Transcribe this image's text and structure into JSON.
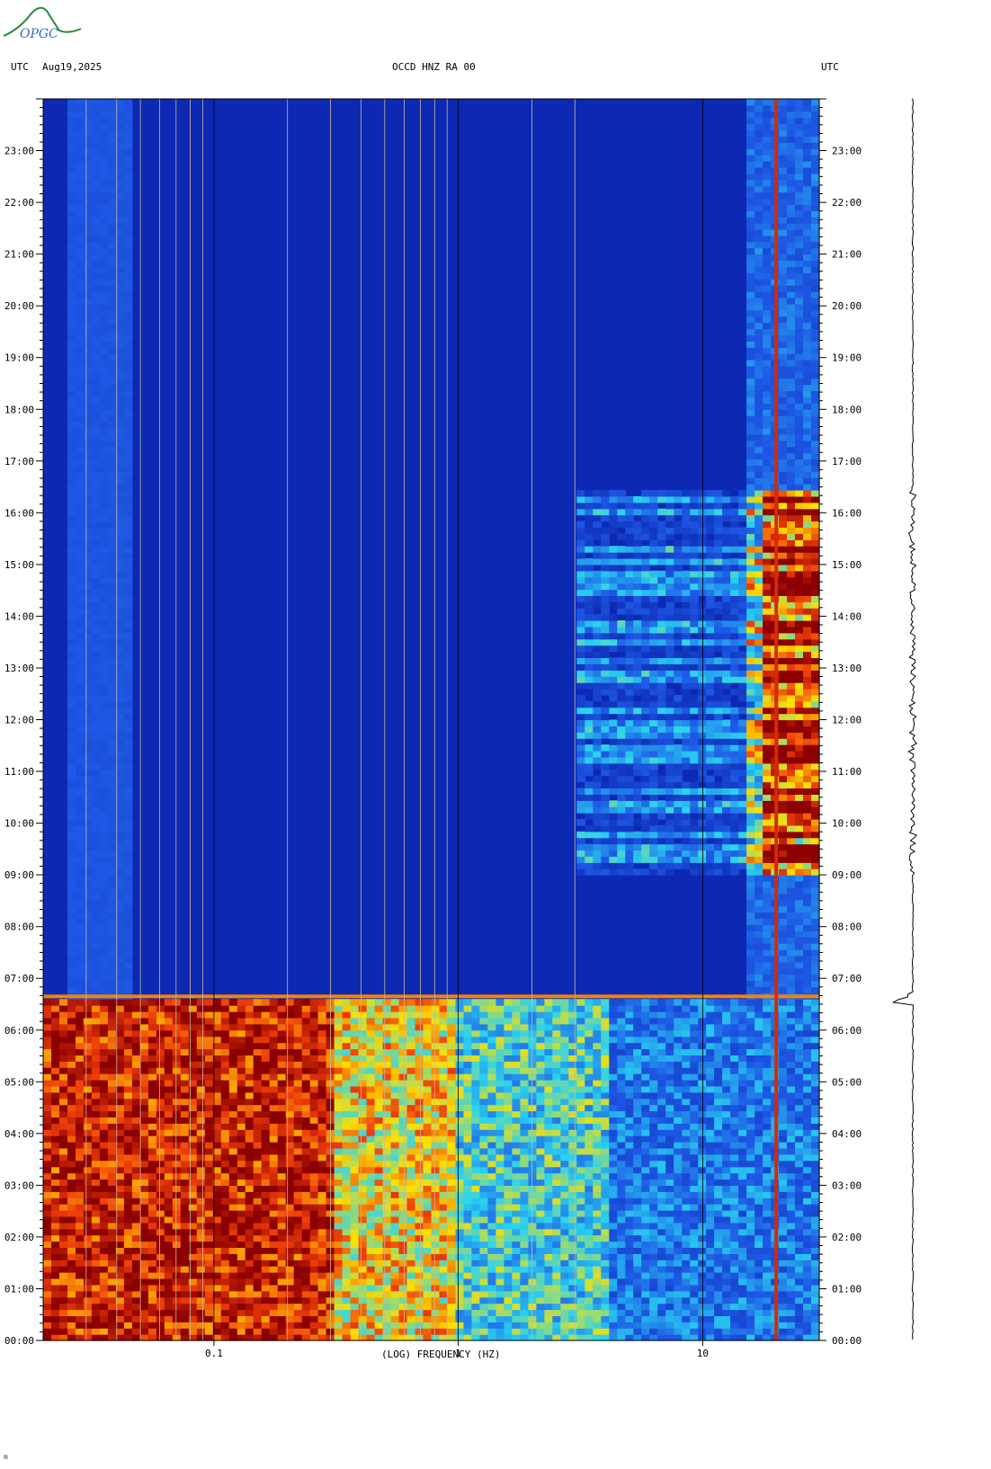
{
  "header": {
    "left_tz": "UTC",
    "date": "Aug19,2025",
    "station": "OCCD HNZ RA 00",
    "right_tz": "UTC"
  },
  "logo": {
    "text": "OPGC"
  },
  "footer_mark": "m",
  "chart_data": {
    "type": "heatmap",
    "title": "OCCD HNZ RA 00",
    "xlabel": "(LOG) FREQUENCY (HZ)",
    "x_scale": "log",
    "xlim": [
      0.02,
      30
    ],
    "x_ticks": [
      {
        "value": 0.1,
        "label": "0.1"
      },
      {
        "value": 1,
        "label": "1"
      },
      {
        "value": 10,
        "label": "10"
      }
    ],
    "ylabel": "",
    "y_ticks": [
      "00:00",
      "01:00",
      "02:00",
      "03:00",
      "04:00",
      "05:00",
      "06:00",
      "07:00",
      "08:00",
      "09:00",
      "10:00",
      "11:00",
      "12:00",
      "13:00",
      "14:00",
      "15:00",
      "16:00",
      "17:00",
      "18:00",
      "19:00",
      "20:00",
      "21:00",
      "22:00",
      "23:00"
    ],
    "colors": {
      "low": "#0a1fa8",
      "mid": "#2ad3f0",
      "high": "#ffe000",
      "max": "#8b0000"
    },
    "features": {
      "high_energy_period_hours": [
        0,
        6.6
      ],
      "persistent_line_hz": 20,
      "transient_onset_hour": 6.65,
      "activity_bursts_hours": [
        9.0,
        16.5
      ]
    }
  }
}
